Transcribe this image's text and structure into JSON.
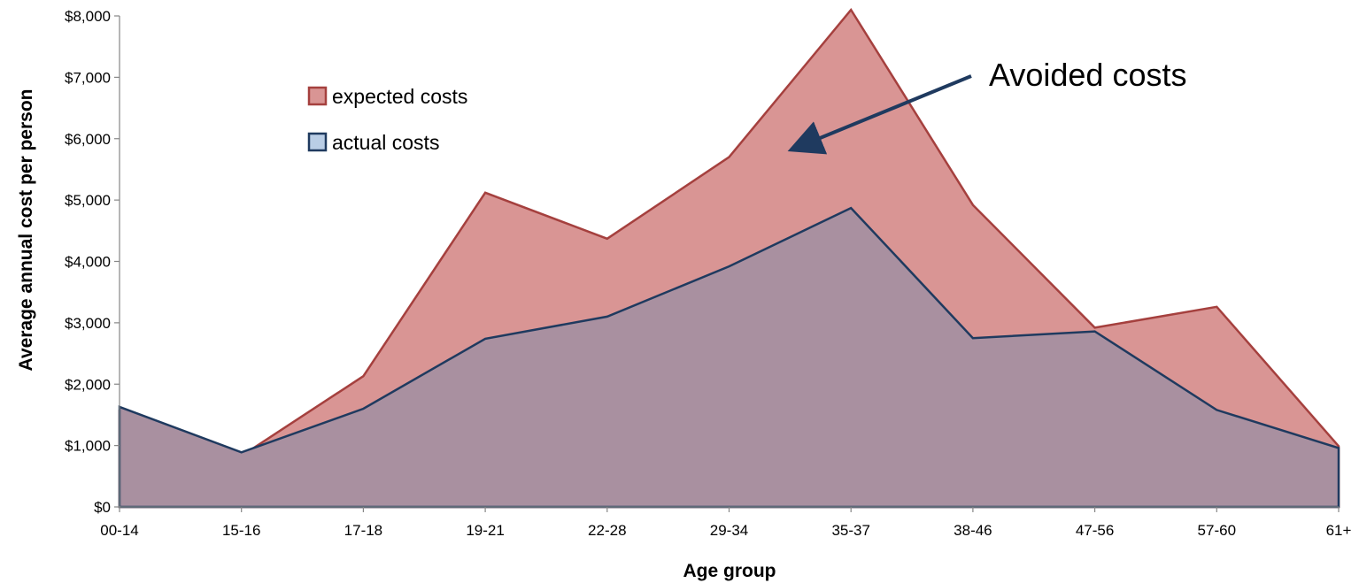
{
  "chart_data": {
    "type": "area",
    "categories": [
      "00-14",
      "15-16",
      "17-18",
      "19-21",
      "22-28",
      "29-34",
      "35-37",
      "38-46",
      "47-56",
      "57-60",
      "61+"
    ],
    "series": [
      {
        "name": "expected costs",
        "values": [
          1560,
          830,
          2130,
          5120,
          4370,
          5700,
          8100,
          4920,
          2920,
          3260,
          990
        ],
        "fill": "#d99594",
        "stroke": "#a5403e"
      },
      {
        "name": "actual costs",
        "values": [
          1630,
          890,
          1600,
          2740,
          3100,
          3920,
          4870,
          2750,
          2860,
          1580,
          960
        ],
        "fill": "#a990a0",
        "stroke": "#1f3a5f"
      }
    ],
    "xlabel": "Age group",
    "ylabel": "Average annual cost per person",
    "ylim": [
      0,
      8000
    ],
    "yticks": [
      "$0",
      "$1,000",
      "$2,000",
      "$3,000",
      "$4,000",
      "$5,000",
      "$6,000",
      "$7,000",
      "$8,000"
    ],
    "grid": false,
    "legend_position": "top-left",
    "annotation": {
      "text": "Avoided costs"
    }
  }
}
